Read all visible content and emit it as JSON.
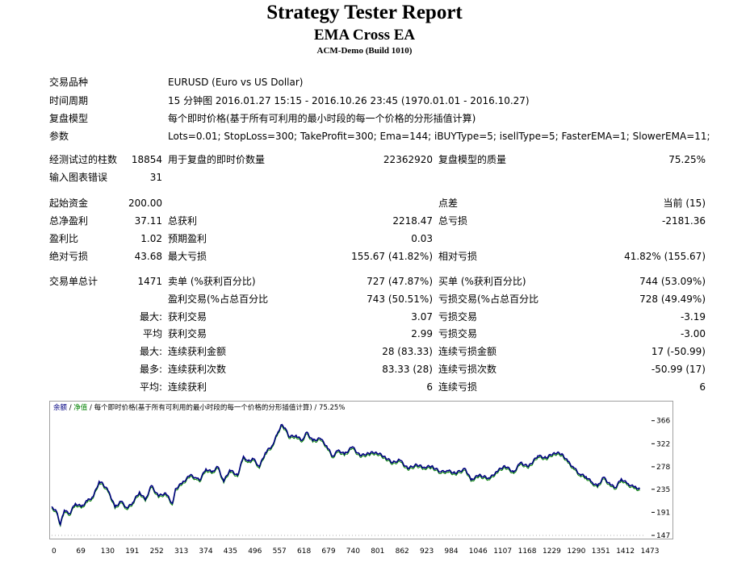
{
  "report": {
    "title": "Strategy Tester Report",
    "ea_name": "EMA Cross EA",
    "server": "ACM-Demo (Build 1010)"
  },
  "info": {
    "symbol_label": "交易品种",
    "symbol_value": "EURUSD (Euro vs US Dollar)",
    "period_label": "时间周期",
    "period_value": "15 分钟图 2016.01.27 15:15 - 2016.10.26 23:45 (1970.01.01 - 2016.10.27)",
    "model_label": "复盘模型",
    "model_value": "每个即时价格(基于所有可利用的最小时段的每一个价格的分形插值计算)",
    "params_label": "参数",
    "params_value": "Lots=0.01; StopLoss=300; TakeProfit=300; Ema=144; iBUYType=5; isellType=5; FasterEMA=1; SlowerEMA=11;"
  },
  "stats": {
    "bars_label": "经测试过的柱数",
    "bars_value": "18854",
    "ticks_label": "用于复盘的即时价数量",
    "ticks_value": "22362920",
    "quality_label": "复盘模型的质量",
    "quality_value": "75.25%",
    "errors_label": "输入图表错误",
    "errors_value": "31",
    "deposit_label": "起始资金",
    "deposit_value": "200.00",
    "spread_label": "点差",
    "spread_value": "当前 (15)",
    "net_label": "总净盈利",
    "net_value": "37.11",
    "gross_profit_label": "总获利",
    "gross_profit_value": "2218.47",
    "gross_loss_label": "总亏损",
    "gross_loss_value": "-2181.36",
    "pf_label": "盈利比",
    "pf_value": "1.02",
    "expected_label": "预期盈利",
    "expected_value": "0.03",
    "abs_dd_label": "绝对亏损",
    "abs_dd_value": "43.68",
    "max_dd_label": "最大亏损",
    "max_dd_value": "155.67 (41.82%)",
    "rel_dd_label": "相对亏损",
    "rel_dd_value": "41.82% (155.67)",
    "total_trades_label": "交易单总计",
    "total_trades_value": "1471",
    "short_label": "卖单 (%获利百分比)",
    "short_value": "727 (47.87%)",
    "long_label": "买单 (%获利百分比)",
    "long_value": "744 (53.09%)",
    "profit_trades_label": "盈利交易(%占总百分比",
    "profit_trades_value": "743 (50.51%)",
    "loss_trades_label": "亏损交易(%占总百分比",
    "loss_trades_value": "728 (49.49%)",
    "largest_prefix": "最大:",
    "largest_profit_label": "获利交易",
    "largest_profit_value": "3.07",
    "largest_loss_label": "亏损交易",
    "largest_loss_value": "-3.19",
    "average_prefix": "平均",
    "avg_profit_label": "获利交易",
    "avg_profit_value": "2.99",
    "avg_loss_label": "亏损交易",
    "avg_loss_value": "-3.00",
    "max_prefix": "最大:",
    "consec_wins_money_label": "连续获利金额",
    "consec_wins_money_value": "28 (83.33)",
    "consec_losses_money_label": "连续亏损金额",
    "consec_losses_money_value": "17 (-50.99)",
    "most_prefix": "最多:",
    "consec_profit_label": "连续获利次数",
    "consec_profit_value": "83.33 (28)",
    "consec_loss_label": "连续亏损次数",
    "consec_loss_value": "-50.99 (17)",
    "avg2_prefix": "平均:",
    "avg_consec_wins_label": "连续获利",
    "avg_consec_wins_value": "6",
    "avg_consec_losses_label": "连续亏损",
    "avg_consec_losses_value": "6"
  },
  "chart_caption": {
    "balance": "余额",
    "sep1": " / ",
    "equity": "净值",
    "rest": " / 每个即时价格(基于所有可利用的最小时段的每一个价格的分形插值计算) / 75.25%",
    "balance_color": "#000080",
    "equity_color": "#008000"
  },
  "chart_data": {
    "type": "line",
    "xlabel": "",
    "ylabel": "",
    "x_ticks": [
      0,
      69,
      130,
      191,
      252,
      313,
      374,
      435,
      496,
      557,
      618,
      679,
      740,
      801,
      862,
      923,
      984,
      1046,
      1107,
      1168,
      1229,
      1290,
      1351,
      1412,
      1473
    ],
    "y_ticks": [
      147,
      191,
      235,
      278,
      322,
      366
    ],
    "xlim": [
      0,
      1500
    ],
    "ylim": [
      147,
      381
    ],
    "series": [
      {
        "color": "#000080",
        "x": [
          0,
          12,
          22,
          32,
          45,
          60,
          75,
          90,
          105,
          120,
          130,
          145,
          160,
          175,
          191,
          205,
          222,
          237,
          252,
          270,
          288,
          305,
          313,
          330,
          350,
          365,
          374,
          390,
          405,
          420,
          435,
          450,
          470,
          485,
          496,
          510,
          525,
          540,
          557,
          570,
          580,
          590,
          600,
          618,
          632,
          645,
          660,
          679,
          695,
          710,
          725,
          740,
          760,
          780,
          801,
          820,
          840,
          862,
          880,
          900,
          923,
          940,
          960,
          984,
          1000,
          1020,
          1046,
          1060,
          1080,
          1107,
          1125,
          1145,
          1168,
          1185,
          1205,
          1229,
          1250,
          1270,
          1290,
          1305,
          1320,
          1335,
          1351,
          1365,
          1380,
          1395,
          1412,
          1425,
          1440,
          1455,
          1473,
          1487
        ],
        "y": [
          202,
          193,
          168,
          195,
          188,
          208,
          202,
          213,
          221,
          250,
          245,
          230,
          201,
          212,
          199,
          210,
          230,
          215,
          242,
          222,
          228,
          208,
          236,
          247,
          262,
          257,
          252,
          274,
          268,
          278,
          250,
          272,
          262,
          298,
          289,
          293,
          278,
          305,
          318,
          340,
          358,
          352,
          335,
          338,
          328,
          344,
          328,
          332,
          318,
          298,
          310,
          302,
          316,
          299,
          304,
          306,
          298,
          286,
          291,
          275,
          282,
          277,
          279,
          268,
          271,
          266,
          274,
          253,
          262,
          256,
          269,
          280,
          268,
          286,
          278,
          299,
          295,
          305,
          303,
          288,
          276,
          264,
          259,
          249,
          241,
          258,
          244,
          238,
          255,
          246,
          239,
          236
        ]
      }
    ]
  }
}
